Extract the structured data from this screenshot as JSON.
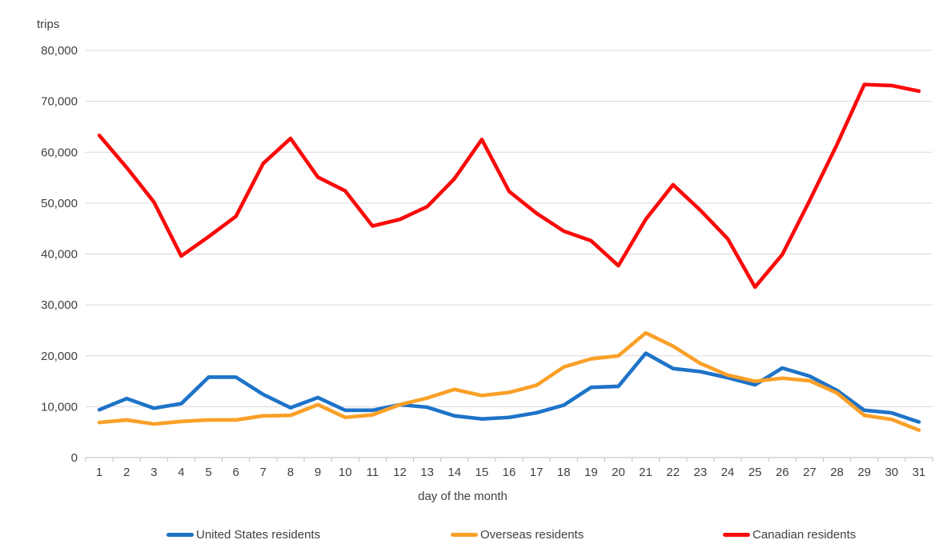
{
  "chart_data": {
    "type": "line",
    "title": "",
    "ylabel": "trips",
    "xlabel": "day of the month",
    "ylim": [
      0,
      80000
    ],
    "ytick_step": 10000,
    "ytick_labels": [
      "0",
      "10,000",
      "20,000",
      "30,000",
      "40,000",
      "50,000",
      "60,000",
      "70,000",
      "80,000"
    ],
    "grid": "horizontal",
    "gridline_color": "#d9d9d9",
    "axis_line_color": "#bfbfbf",
    "tick_text_color": "#404040",
    "legend_position": "bottom",
    "x": [
      1,
      2,
      3,
      4,
      5,
      6,
      7,
      8,
      9,
      10,
      11,
      12,
      13,
      14,
      15,
      16,
      17,
      18,
      19,
      20,
      21,
      22,
      23,
      24,
      25,
      26,
      27,
      28,
      29,
      30,
      31
    ],
    "series": [
      {
        "name": "United States residents",
        "color": "#1e73c8",
        "values": [
          9400,
          11600,
          9700,
          10600,
          15800,
          15800,
          12400,
          9800,
          11800,
          9300,
          9300,
          10400,
          9900,
          8200,
          7600,
          7900,
          8800,
          10300,
          13800,
          14000,
          20500,
          17500,
          16900,
          15700,
          14300,
          17600,
          16000,
          13200,
          9300,
          8800,
          7000
        ]
      },
      {
        "name": "Overseas residents",
        "color": "#faa028",
        "values": [
          6900,
          7400,
          6600,
          7100,
          7400,
          7400,
          8200,
          8300,
          10400,
          7900,
          8400,
          10400,
          11700,
          13400,
          12200,
          12800,
          14200,
          17800,
          19400,
          20000,
          24500,
          21900,
          18500,
          16200,
          15000,
          15600,
          15100,
          12700,
          8300,
          7500,
          5400
        ]
      },
      {
        "name": "Canadian residents",
        "color": "#fa0a0a",
        "values": [
          63300,
          57000,
          50200,
          39600,
          43400,
          47400,
          57800,
          62700,
          55100,
          52400,
          45500,
          46800,
          49300,
          54800,
          62500,
          52300,
          48000,
          44500,
          42600,
          37700,
          46800,
          53600,
          48600,
          43000,
          33500,
          39900,
          50500,
          61500,
          73300,
          73100,
          72000
        ]
      }
    ]
  }
}
